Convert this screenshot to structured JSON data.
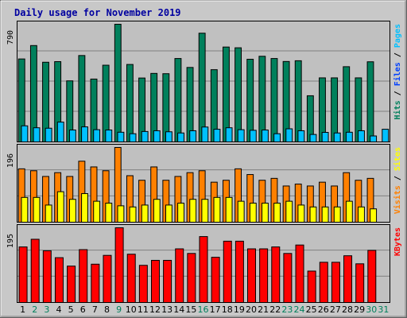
{
  "chart_data": {
    "type": "bar",
    "title": "Daily usage for November 2019",
    "days": [
      "1",
      "2",
      "3",
      "4",
      "5",
      "6",
      "7",
      "8",
      "9",
      "10",
      "11",
      "12",
      "13",
      "14",
      "15",
      "16",
      "17",
      "18",
      "19",
      "20",
      "21",
      "22",
      "23",
      "24",
      "25",
      "26",
      "27",
      "28",
      "29",
      "30",
      "31"
    ],
    "weekend_days": [
      "2",
      "3",
      "9",
      "16",
      "23",
      "24",
      "30",
      "31"
    ],
    "panels": [
      {
        "name": "hits-files-pages",
        "ymax_label": "790",
        "ymax": 790,
        "side_labels": [
          {
            "text": "Hits",
            "color": "#00805c"
          },
          {
            "text": "Files",
            "color": "#0040ff"
          },
          {
            "text": "Pages",
            "color": "#00c0ff"
          }
        ],
        "series": [
          {
            "name": "Hits",
            "color": "#00805c",
            "values": [
              557,
              647,
              535,
              539,
              410,
              580,
              422,
              515,
              790,
              520,
              429,
              460,
              458,
              560,
              500,
              730,
              485,
              637,
              632,
              555,
              575,
              560,
              540,
              545,
              310,
              430,
              430,
              505,
              430,
              538,
              0
            ]
          },
          {
            "name": "Files",
            "color": "#00c0ff",
            "values": [
              108,
              95,
              92,
              133,
              80,
              101,
              82,
              80,
              65,
              55,
              70,
              75,
              68,
              60,
              75,
              100,
              85,
              95,
              82,
              78,
              80,
              55,
              88,
              75,
              50,
              64,
              60,
              65,
              75,
              40,
              85
            ]
          }
        ]
      },
      {
        "name": "visits-sites",
        "ymax_label": "196",
        "ymax": 196,
        "side_labels": [
          {
            "text": "Visits",
            "color": "#ff8000"
          },
          {
            "text": "Sites",
            "color": "#ffff00"
          }
        ],
        "series": [
          {
            "name": "Visits",
            "color": "#ff8000",
            "values": [
              140,
              135,
              120,
              130,
              120,
              160,
              145,
              135,
              196,
              122,
              110,
              145,
              110,
              120,
              130,
              135,
              105,
              110,
              140,
              125,
              110,
              115,
              95,
              100,
              95,
              105,
              95,
              130,
              110,
              115,
              0
            ]
          },
          {
            "name": "Sites",
            "color": "#ffff00",
            "values": [
              65,
              65,
              45,
              80,
              60,
              75,
              55,
              50,
              43,
              40,
              45,
              60,
              45,
              50,
              60,
              60,
              65,
              65,
              55,
              50,
              50,
              50,
              55,
              45,
              40,
              40,
              40,
              55,
              40,
              35,
              0
            ]
          }
        ]
      },
      {
        "name": "kbytes",
        "ymax_label": "195",
        "ymax": 195,
        "side_labels": [
          {
            "text": "KBytes",
            "color": "#ff0000"
          }
        ],
        "series": [
          {
            "name": "KBytes",
            "color": "#ff0000",
            "values": [
              145,
              165,
              135,
              117,
              95,
              138,
              100,
              123,
              195,
              126,
              97,
              110,
              110,
              140,
              128,
              172,
              118,
              160,
              160,
              140,
              140,
              145,
              128,
              150,
              82,
              105,
              105,
              122,
              101,
              136,
              0
            ]
          }
        ]
      }
    ]
  }
}
